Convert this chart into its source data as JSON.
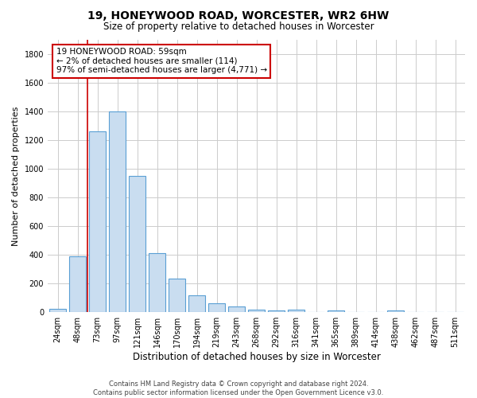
{
  "title": "19, HONEYWOOD ROAD, WORCESTER, WR2 6HW",
  "subtitle": "Size of property relative to detached houses in Worcester",
  "xlabel": "Distribution of detached houses by size in Worcester",
  "ylabel": "Number of detached properties",
  "bar_color": "#c9ddf0",
  "bar_edge_color": "#5a9fd4",
  "categories": [
    "24sqm",
    "48sqm",
    "73sqm",
    "97sqm",
    "121sqm",
    "146sqm",
    "170sqm",
    "194sqm",
    "219sqm",
    "243sqm",
    "268sqm",
    "292sqm",
    "316sqm",
    "341sqm",
    "365sqm",
    "389sqm",
    "414sqm",
    "438sqm",
    "462sqm",
    "487sqm",
    "511sqm"
  ],
  "values": [
    25,
    390,
    1260,
    1400,
    950,
    410,
    235,
    120,
    65,
    40,
    20,
    15,
    20,
    0,
    15,
    0,
    0,
    15,
    0,
    0,
    0
  ],
  "ylim": [
    0,
    1900
  ],
  "yticks": [
    0,
    200,
    400,
    600,
    800,
    1000,
    1200,
    1400,
    1600,
    1800
  ],
  "vline_x": 1.5,
  "annotation_text_line1": "19 HONEYWOOD ROAD: 59sqm",
  "annotation_text_line2": "← 2% of detached houses are smaller (114)",
  "annotation_text_line3": "97% of semi-detached houses are larger (4,771) →",
  "annotation_box_color": "#ffffff",
  "annotation_box_edge_color": "#cc0000",
  "vline_color": "#cc0000",
  "footer_line1": "Contains HM Land Registry data © Crown copyright and database right 2024.",
  "footer_line2": "Contains public sector information licensed under the Open Government Licence v3.0.",
  "background_color": "#ffffff",
  "grid_color": "#cccccc",
  "title_fontsize": 10,
  "subtitle_fontsize": 8.5,
  "ylabel_fontsize": 8,
  "xlabel_fontsize": 8.5,
  "tick_fontsize": 7,
  "annotation_fontsize": 7.5,
  "footer_fontsize": 6
}
